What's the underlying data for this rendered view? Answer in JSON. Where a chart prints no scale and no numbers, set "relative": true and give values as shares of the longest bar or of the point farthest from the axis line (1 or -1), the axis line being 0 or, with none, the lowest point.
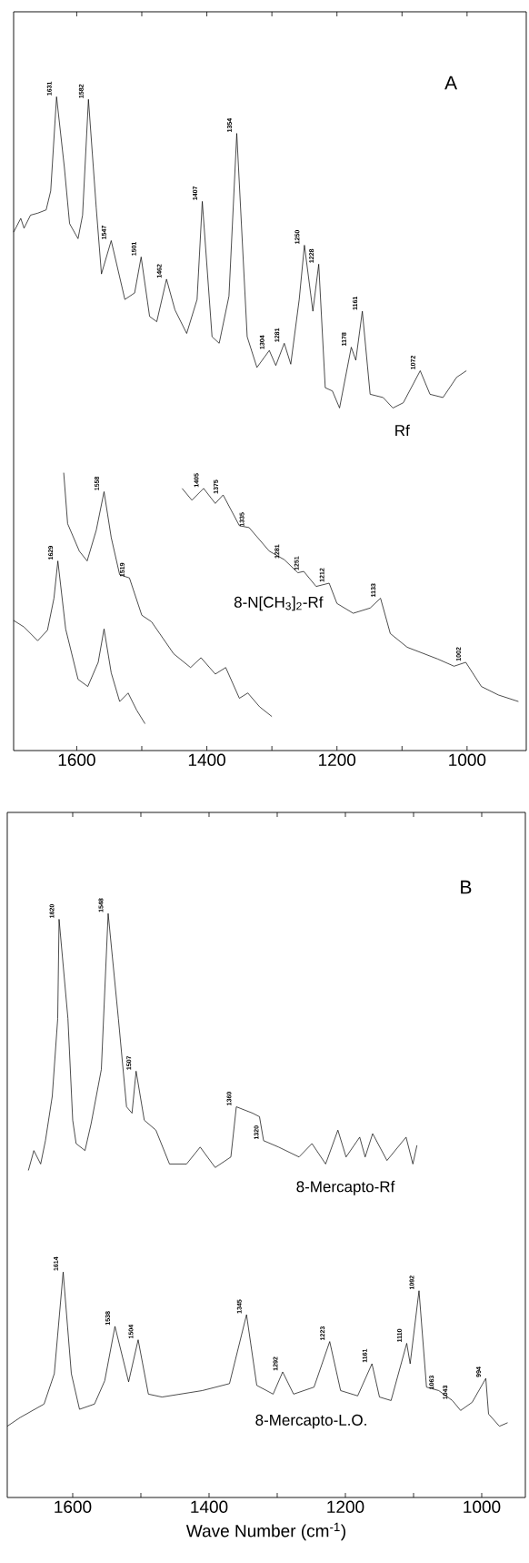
{
  "chart_data": [
    {
      "type": "line",
      "title": "A",
      "relative": true,
      "marker": "none",
      "tick_labels": "x",
      "xlim": [
        1697,
        909
      ],
      "xticks": [
        1600,
        {
          "value": 1500,
          "label": null
        },
        1400,
        {
          "value": 1300,
          "label": null
        },
        1200,
        {
          "value": 1100,
          "label": null
        },
        1000
      ],
      "series": [
        {
          "name": "Rf",
          "color": "#000000",
          "x": [
            1697,
            1686,
            1681,
            1671,
            1660,
            1647,
            1640,
            1631,
            1619,
            1611,
            1598,
            1591,
            1582,
            1570,
            1562,
            1547,
            1526,
            1511,
            1501,
            1488,
            1477,
            1462,
            1449,
            1431,
            1415,
            1407,
            1392,
            1381,
            1366,
            1354,
            1338,
            1323,
            1304,
            1294,
            1281,
            1271,
            1258,
            1250,
            1237,
            1228,
            1218,
            1207,
            1196,
            1178,
            1171,
            1161,
            1149,
            1129,
            1114,
            1098,
            1072,
            1057,
            1037,
            1016,
            1001
          ],
          "values": [
            0.793,
            0.814,
            0.799,
            0.819,
            0.822,
            0.827,
            0.856,
            1.0,
            0.892,
            0.806,
            0.783,
            0.819,
            0.996,
            0.83,
            0.729,
            0.78,
            0.69,
            0.7,
            0.755,
            0.664,
            0.656,
            0.721,
            0.674,
            0.638,
            0.69,
            0.84,
            0.633,
            0.623,
            0.695,
            0.944,
            0.633,
            0.586,
            0.612,
            0.589,
            0.623,
            0.591,
            0.69,
            0.773,
            0.672,
            0.744,
            0.555,
            0.55,
            0.524,
            0.617,
            0.597,
            0.672,
            0.545,
            0.54,
            0.524,
            0.532,
            0.581,
            0.545,
            0.54,
            0.571,
            0.581
          ]
        },
        {
          "name": "8-N[CH$_{3}$]$_{2}$-Rf",
          "color": "#000000",
          "x": [
            1438,
            1423,
            1405,
            1387,
            1375,
            1350,
            1335,
            1304,
            1281,
            1260,
            1251,
            1232,
            1212,
            1200,
            1175,
            1149,
            1133,
            1118,
            1092,
            1045,
            1020,
            1002,
            978,
            952,
            921
          ],
          "values": [
            0.401,
            0.383,
            0.401,
            0.378,
            0.391,
            0.344,
            0.341,
            0.305,
            0.292,
            0.272,
            0.274,
            0.251,
            0.256,
            0.225,
            0.21,
            0.218,
            0.233,
            0.179,
            0.158,
            0.14,
            0.129,
            0.135,
            0.098,
            0.085,
            0.075
          ]
        },
        {
          "color": "#000000",
          "x": [
            1620,
            1614,
            1596,
            1584,
            1570,
            1558,
            1547,
            1534,
            1519,
            1500,
            1485,
            1451,
            1425,
            1409,
            1387,
            1371,
            1350,
            1337,
            1319,
            1300
          ],
          "values": [
            0.425,
            0.347,
            0.305,
            0.29,
            0.337,
            0.396,
            0.326,
            0.269,
            0.264,
            0.207,
            0.197,
            0.148,
            0.127,
            0.142,
            0.117,
            0.127,
            0.08,
            0.088,
            0.067,
            0.052
          ]
        },
        {
          "color": "#000000",
          "x": [
            1697,
            1681,
            1660,
            1645,
            1635,
            1629,
            1617,
            1598,
            1583,
            1567,
            1558,
            1547,
            1534,
            1521,
            1508,
            1495
          ],
          "values": [
            0.199,
            0.189,
            0.168,
            0.184,
            0.233,
            0.29,
            0.186,
            0.109,
            0.098,
            0.135,
            0.186,
            0.119,
            0.075,
            0.088,
            0.062,
            0.041
          ]
        }
      ],
      "annotations": [
        {
          "text": "1631",
          "x": 1631,
          "y": 1.0
        },
        {
          "text": "1582",
          "x": 1582,
          "y": 0.996
        },
        {
          "text": "1547",
          "x": 1547,
          "y": 0.78
        },
        {
          "text": "1501",
          "x": 1501,
          "y": 0.755
        },
        {
          "text": "1462",
          "x": 1462,
          "y": 0.721
        },
        {
          "text": "1407",
          "x": 1407,
          "y": 0.84
        },
        {
          "text": "1354",
          "x": 1354,
          "y": 0.944
        },
        {
          "text": "1304",
          "x": 1304,
          "y": 0.612
        },
        {
          "text": "1281",
          "x": 1281,
          "y": 0.623
        },
        {
          "text": "1250",
          "x": 1250,
          "y": 0.773
        },
        {
          "text": "1228",
          "x": 1228,
          "y": 0.744
        },
        {
          "text": "1178",
          "x": 1178,
          "y": 0.617
        },
        {
          "text": "1161",
          "x": 1161,
          "y": 0.672
        },
        {
          "text": "1072",
          "x": 1072,
          "y": 0.581
        },
        {
          "text": "1629",
          "x": 1629,
          "y": 0.29
        },
        {
          "text": "1558",
          "x": 1558,
          "y": 0.396
        },
        {
          "text": "1519",
          "x": 1519,
          "y": 0.264
        },
        {
          "text": "1405",
          "x": 1405,
          "y": 0.401
        },
        {
          "text": "1375",
          "x": 1375,
          "y": 0.391
        },
        {
          "text": "1335",
          "x": 1335,
          "y": 0.341
        },
        {
          "text": "1281",
          "x": 1281,
          "y": 0.292
        },
        {
          "text": "1251",
          "x": 1251,
          "y": 0.274
        },
        {
          "text": "1212",
          "x": 1212,
          "y": 0.256
        },
        {
          "text": "1133",
          "x": 1133,
          "y": 0.233
        },
        {
          "text": "1002",
          "x": 1002,
          "y": 0.135
        }
      ]
    },
    {
      "type": "line",
      "title": "B",
      "relative": true,
      "marker": "none",
      "tick_labels": "x",
      "xlabel": "Wave Number (cm$^{-1}$)",
      "xlim": [
        1696,
        936
      ],
      "xticks": [
        1600,
        {
          "value": 1500,
          "label": null
        },
        1400,
        {
          "value": 1300,
          "label": null
        },
        1200,
        {
          "value": 1100,
          "label": null
        },
        1000
      ],
      "series": [
        {
          "name": "8-Mercapto-Rf",
          "color": "#000000",
          "x": [
            1665,
            1657,
            1647,
            1640,
            1630,
            1622,
            1620,
            1607,
            1600,
            1595,
            1582,
            1573,
            1558,
            1548,
            1533,
            1521,
            1513,
            1507,
            1495,
            1478,
            1458,
            1433,
            1413,
            1391,
            1368,
            1360,
            1336,
            1326,
            1320,
            1298,
            1268,
            1249,
            1229,
            1211,
            1199,
            1179,
            1171,
            1160,
            1139,
            1111,
            1101,
            1095
          ],
          "values": [
            0.56,
            0.594,
            0.571,
            0.611,
            0.687,
            0.82,
            0.99,
            0.82,
            0.646,
            0.606,
            0.594,
            0.64,
            0.733,
            1.0,
            0.82,
            0.669,
            0.658,
            0.73,
            0.646,
            0.629,
            0.571,
            0.571,
            0.6,
            0.565,
            0.583,
            0.669,
            0.658,
            0.652,
            0.611,
            0.6,
            0.583,
            0.606,
            0.571,
            0.629,
            0.583,
            0.617,
            0.583,
            0.623,
            0.577,
            0.617,
            0.571,
            0.603
          ]
        },
        {
          "name": "8-Mercapto-L.O.",
          "color": "#000000",
          "x": [
            1696,
            1677,
            1642,
            1627,
            1614,
            1602,
            1590,
            1568,
            1553,
            1538,
            1518,
            1504,
            1489,
            1469,
            1410,
            1370,
            1345,
            1330,
            1306,
            1292,
            1276,
            1246,
            1223,
            1207,
            1182,
            1161,
            1150,
            1133,
            1110,
            1105,
            1092,
            1081,
            1063,
            1043,
            1031,
            1014,
            994,
            990,
            974,
            962
          ],
          "values": [
            0.122,
            0.137,
            0.16,
            0.212,
            0.386,
            0.212,
            0.151,
            0.16,
            0.2,
            0.293,
            0.198,
            0.27,
            0.177,
            0.172,
            0.183,
            0.195,
            0.313,
            0.192,
            0.177,
            0.215,
            0.177,
            0.189,
            0.267,
            0.183,
            0.174,
            0.229,
            0.172,
            0.166,
            0.264,
            0.229,
            0.354,
            0.189,
            0.183,
            0.166,
            0.149,
            0.163,
            0.204,
            0.143,
            0.122,
            0.128
          ]
        }
      ],
      "annotations": [
        {
          "text": "1620",
          "x": 1620,
          "y": 0.99
        },
        {
          "text": "1548",
          "x": 1548,
          "y": 1.0
        },
        {
          "text": "1507",
          "x": 1507,
          "y": 0.73
        },
        {
          "text": "1360",
          "x": 1360,
          "y": 0.669
        },
        {
          "text": "1320",
          "x": 1320,
          "y": 0.611
        },
        {
          "text": "1614",
          "x": 1614,
          "y": 0.386
        },
        {
          "text": "1538",
          "x": 1538,
          "y": 0.293
        },
        {
          "text": "1504",
          "x": 1504,
          "y": 0.27
        },
        {
          "text": "1345",
          "x": 1345,
          "y": 0.313
        },
        {
          "text": "1292",
          "x": 1292,
          "y": 0.215
        },
        {
          "text": "1223",
          "x": 1223,
          "y": 0.267
        },
        {
          "text": "1161",
          "x": 1161,
          "y": 0.229
        },
        {
          "text": "1110",
          "x": 1110,
          "y": 0.264
        },
        {
          "text": "1092",
          "x": 1092,
          "y": 0.354
        },
        {
          "text": "1063",
          "x": 1063,
          "y": 0.183
        },
        {
          "text": "1043",
          "x": 1043,
          "y": 0.166
        },
        {
          "text": "994",
          "x": 994,
          "y": 0.204
        }
      ]
    }
  ]
}
